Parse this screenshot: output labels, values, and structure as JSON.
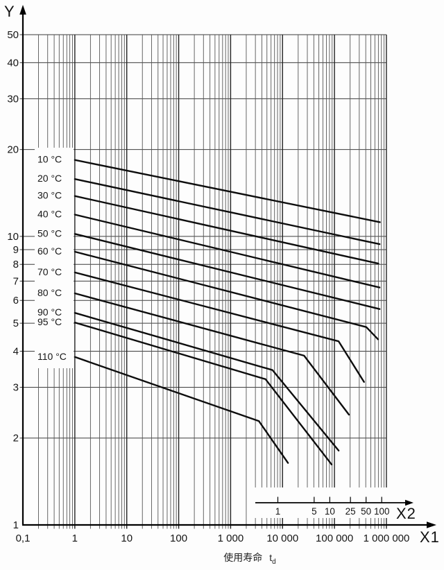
{
  "chart_data": {
    "type": "line",
    "title": "",
    "scale": {
      "x": "log",
      "y": "log"
    },
    "grid": true,
    "y_axis": {
      "label": "Y",
      "range": [
        1,
        50
      ],
      "tick_values": [
        1,
        2,
        3,
        4,
        5,
        6,
        7,
        8,
        9,
        10,
        20,
        30,
        40,
        50
      ],
      "tick_labels": [
        "1",
        "2",
        "3",
        "4",
        "5",
        "6",
        "7",
        "8",
        "9",
        "10",
        "20",
        "30",
        "40",
        "50"
      ]
    },
    "x1_axis": {
      "label": "X1",
      "range": [
        0.1,
        1000000
      ],
      "tick_values": [
        0.1,
        1,
        10,
        100,
        1000,
        10000,
        100000,
        1000000
      ],
      "tick_labels": [
        "0,1",
        "1",
        "10",
        "100",
        "1 000",
        "10 000",
        "100 000",
        "1 000 000"
      ]
    },
    "x2_axis": {
      "label": "X2",
      "tick_values": [
        1,
        5,
        10,
        25,
        50,
        100
      ],
      "tick_labels": [
        "1",
        "5",
        "10",
        "25",
        "50",
        "100"
      ]
    },
    "caption": {
      "text": "使用寿命",
      "symbol": "t",
      "subscript": "d"
    },
    "legend_position": "left-inline-labels",
    "series": [
      {
        "name": "10 °C",
        "temperature": 10,
        "points": [
          [
            1,
            18.4
          ],
          [
            750000,
            11.2
          ]
        ]
      },
      {
        "name": "20 °C",
        "temperature": 20,
        "points": [
          [
            1,
            15.8
          ],
          [
            740000,
            9.4
          ]
        ]
      },
      {
        "name": "30 °C",
        "temperature": 30,
        "points": [
          [
            1,
            13.8
          ],
          [
            700000,
            8.05
          ]
        ]
      },
      {
        "name": "40 °C",
        "temperature": 40,
        "points": [
          [
            1,
            11.9
          ],
          [
            740000,
            6.65
          ]
        ]
      },
      {
        "name": "50 °C",
        "temperature": 50,
        "points": [
          [
            1,
            10.2
          ],
          [
            740000,
            5.6
          ]
        ]
      },
      {
        "name": "60 °C",
        "temperature": 60,
        "points": [
          [
            1,
            8.85
          ],
          [
            410000,
            4.85
          ],
          [
            690000,
            4.4
          ]
        ]
      },
      {
        "name": "70 °C",
        "temperature": 70,
        "points": [
          [
            1,
            7.5
          ],
          [
            120000,
            4.33
          ],
          [
            370000,
            3.13
          ]
        ]
      },
      {
        "name": "80 °C",
        "temperature": 80,
        "points": [
          [
            1,
            6.35
          ],
          [
            26000,
            3.86
          ],
          [
            190000,
            2.41
          ]
        ]
      },
      {
        "name": "90 °C",
        "temperature": 90,
        "points": [
          [
            1,
            5.43
          ],
          [
            6400,
            3.44
          ],
          [
            120000,
            1.81
          ]
        ]
      },
      {
        "name": "95 °C",
        "temperature": 95,
        "points": [
          [
            1,
            5.03
          ],
          [
            4700,
            3.2
          ],
          [
            88000,
            1.62
          ]
        ]
      },
      {
        "name": "110 °C",
        "temperature": 110,
        "points": [
          [
            1,
            3.82
          ],
          [
            3500,
            2.29
          ],
          [
            12700,
            1.64
          ]
        ]
      }
    ],
    "colors": {
      "curve": "#0d0d0d",
      "grid_minor": "#555555",
      "grid_major": "#222222",
      "axis": "#000000",
      "background": "#fdfdfd"
    }
  }
}
